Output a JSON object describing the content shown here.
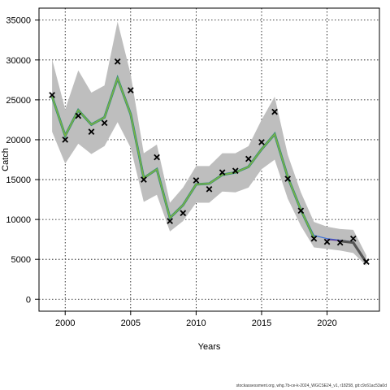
{
  "chart_data": {
    "type": "line",
    "title": "",
    "xlabel": "Years",
    "ylabel": "Catch",
    "xlim": [
      1998,
      2024
    ],
    "ylim": [
      -1500,
      36500
    ],
    "x_ticks": [
      2000,
      2005,
      2010,
      2015,
      2020
    ],
    "y_ticks": [
      0,
      5000,
      10000,
      15000,
      20000,
      25000,
      30000,
      35000
    ],
    "grid": true,
    "colors": {
      "band": "#bebebe",
      "observed": "#000000",
      "fit_green": "#7cb342",
      "fit_teal": "#2e8b7a",
      "fit_blue": "#3a6fd8",
      "fit_purple": "#5a3b9e",
      "projection": "#555555"
    },
    "observed": {
      "x": [
        1999,
        2000,
        2001,
        2002,
        2003,
        2004,
        2005,
        2006,
        2007,
        2008,
        2009,
        2010,
        2011,
        2012,
        2013,
        2014,
        2015,
        2016,
        2017,
        2018,
        2019,
        2020,
        2021,
        2022,
        2023
      ],
      "y": [
        25600,
        20000,
        23000,
        21000,
        22100,
        29800,
        26200,
        15000,
        17800,
        9800,
        10800,
        14900,
        13800,
        15900,
        16100,
        17600,
        19700,
        23500,
        15100,
        11100,
        7600,
        7200,
        7100,
        7600,
        4700
      ]
    },
    "fit": {
      "x": [
        1999,
        2000,
        2001,
        2002,
        2003,
        2004,
        2005,
        2006,
        2007,
        2008,
        2009,
        2010,
        2011,
        2012,
        2013,
        2014,
        2015,
        2016,
        2017,
        2018,
        2019
      ],
      "y": [
        25400,
        20500,
        23700,
        21900,
        22800,
        27700,
        23200,
        15200,
        16300,
        10200,
        11800,
        14400,
        14500,
        15600,
        15900,
        16600,
        18800,
        20700,
        15300,
        11200,
        7700
      ]
    },
    "fit_blue": {
      "x": [
        2016,
        2017,
        2018,
        2019,
        2020,
        2021,
        2022
      ],
      "y": [
        20900,
        15400,
        11300,
        8000,
        7600,
        7400,
        7200
      ]
    },
    "projection": {
      "x": [
        2021,
        2022,
        2023
      ],
      "y": [
        7300,
        7100,
        4600
      ]
    },
    "band": {
      "x": [
        1999,
        2000,
        2001,
        2002,
        2003,
        2004,
        2005,
        2006,
        2007,
        2008,
        2009,
        2010,
        2011,
        2012,
        2013,
        2014,
        2015,
        2016,
        2017,
        2018,
        2019,
        2020,
        2021,
        2022,
        2023
      ],
      "lower": [
        21000,
        17000,
        19500,
        18200,
        19200,
        22200,
        19000,
        12200,
        13100,
        8500,
        9800,
        12100,
        12100,
        13500,
        13400,
        14000,
        16300,
        17500,
        12600,
        9200,
        6500,
        6300,
        6100,
        5800,
        4200
      ],
      "upper": [
        30100,
        23800,
        28700,
        25900,
        26800,
        34800,
        28200,
        18300,
        19400,
        12100,
        14000,
        16700,
        16700,
        18300,
        18300,
        19200,
        22500,
        25400,
        18100,
        13400,
        9700,
        9100,
        8800,
        8700,
        5500
      ]
    }
  },
  "caption": "stockassessment.org, whg.7b-ce-k-2024_WGCSE24_v1, r18258, git:c9c61ac53a0d"
}
